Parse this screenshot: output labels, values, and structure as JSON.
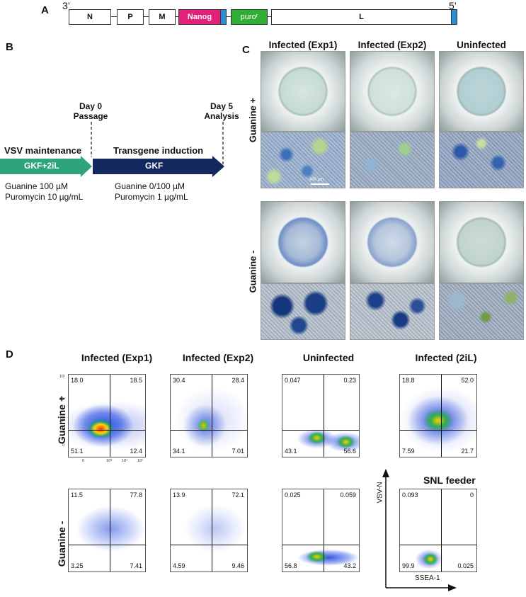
{
  "panel_labels": {
    "a": "A",
    "b": "B",
    "c": "C",
    "d": "D"
  },
  "panel_a": {
    "end_left": "3’",
    "end_right": "5’",
    "genes": {
      "n": "N",
      "p": "P",
      "m": "M",
      "nanog": "Nanog",
      "puro": "puroʳ",
      "l": "L"
    },
    "colors": {
      "nanog": "#e3207a",
      "puro": "#2fb034",
      "tag": "#2a8fd6"
    }
  },
  "panel_b": {
    "day0": "Day 0",
    "passage": "Passage",
    "day5": "Day 5",
    "analysis": "Analysis",
    "maint_title": "VSV maintenance",
    "maint_arrow": "GKF+2iL",
    "induct_title": "Transgene induction",
    "induct_arrow": "GKF",
    "maint_guanine": "Guanine 100 µM",
    "maint_puro": "Puromycin 10 µg/mL",
    "induct_guanine": "Guanine 0/100 µM",
    "induct_puro": "Puromycin 1 µg/mL",
    "colors": {
      "maint": "#2ea37d",
      "induct": "#12285e"
    }
  },
  "panel_c": {
    "columns": [
      "Infected (Exp1)",
      "Infected (Exp2)",
      "Uninfected"
    ],
    "rows": [
      "Guanine +",
      "Guanine -"
    ],
    "scale_bar": "400 µm"
  },
  "panel_d": {
    "columns": [
      "Infected (Exp1)",
      "Infected (Exp2)",
      "Uninfected",
      "Infected (2iL)"
    ],
    "rows": [
      "Guanine +",
      "Guanine -"
    ],
    "feeder_label": "SNL feeder",
    "y_axis": "VSV-N",
    "x_axis": "SSEA-1",
    "y_ticks": [
      "10⁵",
      "10⁴",
      "10³",
      "0"
    ],
    "x_ticks": [
      "0",
      "10³",
      "10⁴",
      "10⁵"
    ],
    "plots": [
      {
        "tl": "18.0",
        "tr": "18.5",
        "bl": "51.1",
        "br": "12.4"
      },
      {
        "tl": "30.4",
        "tr": "28.4",
        "bl": "34.1",
        "br": "7.01"
      },
      {
        "tl": "0.047",
        "tr": "0.23",
        "bl": "43.1",
        "br": "56.6"
      },
      {
        "tl": "18.8",
        "tr": "52.0",
        "bl": "7.59",
        "br": "21.7"
      },
      {
        "tl": "11.5",
        "tr": "77.8",
        "bl": "3.25",
        "br": "7.41"
      },
      {
        "tl": "13.9",
        "tr": "72.1",
        "bl": "4.59",
        "br": "9.46"
      },
      {
        "tl": "0.025",
        "tr": "0.059",
        "bl": "56.8",
        "br": "43.2"
      },
      {
        "tl": "0.093",
        "tr": "0",
        "bl": "99.9",
        "br": "0.025"
      }
    ]
  }
}
